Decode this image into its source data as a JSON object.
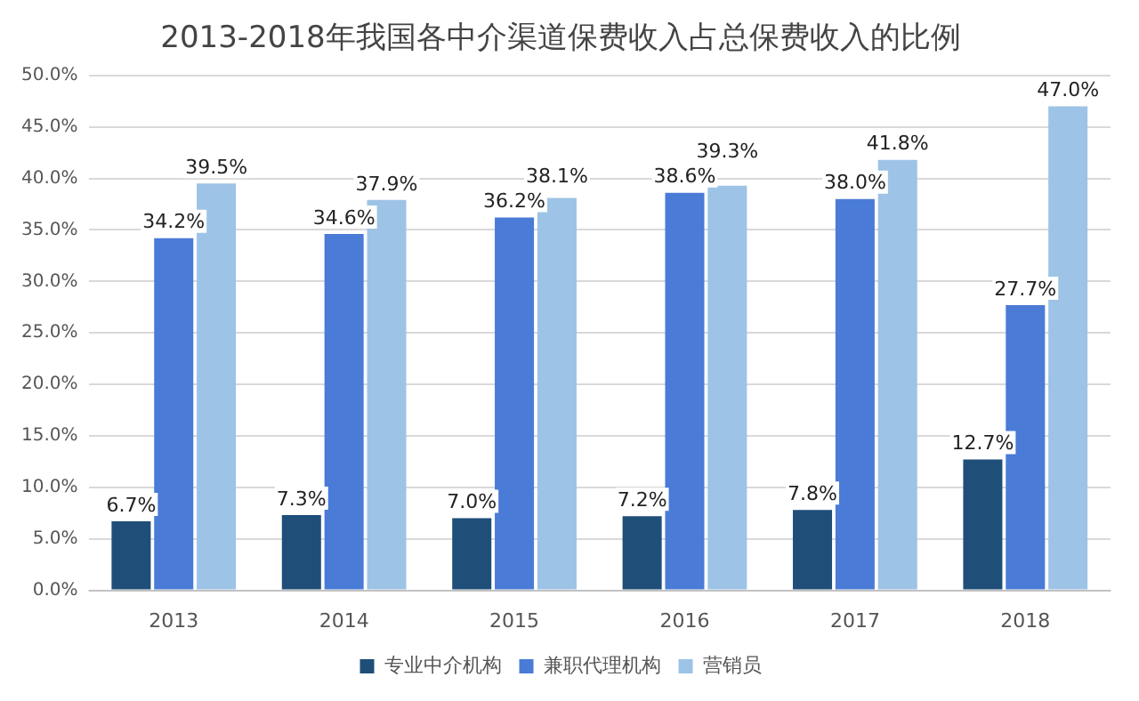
{
  "chart_data": {
    "type": "bar",
    "title": "2013-2018年我国各中介渠道保费收入占总保费收入的比例",
    "categories": [
      "2013",
      "2014",
      "2015",
      "2016",
      "2017",
      "2018"
    ],
    "series": [
      {
        "name": "专业中介机构",
        "color": "#1f4e79",
        "values": [
          6.7,
          7.3,
          7.0,
          7.2,
          7.8,
          12.7
        ],
        "value_labels": [
          "6.7%",
          "7.3%",
          "7.0%",
          "7.2%",
          "7.8%",
          "12.7%"
        ]
      },
      {
        "name": "兼职代理机构",
        "color": "#4a7bd6",
        "values": [
          34.2,
          34.6,
          36.2,
          38.6,
          38.0,
          27.7
        ],
        "value_labels": [
          "34.2%",
          "34.6%",
          "36.2%",
          "38.6%",
          "38.0%",
          "27.7%"
        ]
      },
      {
        "name": "营销员",
        "color": "#9dc3e6",
        "values": [
          39.5,
          37.9,
          38.1,
          39.3,
          41.8,
          47.0
        ],
        "value_labels": [
          "39.5%",
          "37.9%",
          "38.1%",
          "39.3%",
          "41.8%",
          "47.0%"
        ]
      }
    ],
    "ylim": [
      0,
      50
    ],
    "yticks": [
      {
        "value": 0,
        "label": "0.0%"
      },
      {
        "value": 5,
        "label": "5.0%"
      },
      {
        "value": 10,
        "label": "10.0%"
      },
      {
        "value": 15,
        "label": "15.0%"
      },
      {
        "value": 20,
        "label": "20.0%"
      },
      {
        "value": 25,
        "label": "25.0%"
      },
      {
        "value": 30,
        "label": "30.0%"
      },
      {
        "value": 35,
        "label": "35.0%"
      },
      {
        "value": 40,
        "label": "40.0%"
      },
      {
        "value": 45,
        "label": "45.0%"
      },
      {
        "value": 50,
        "label": "50.0%"
      }
    ],
    "grid": "y",
    "legend": "bottom"
  }
}
